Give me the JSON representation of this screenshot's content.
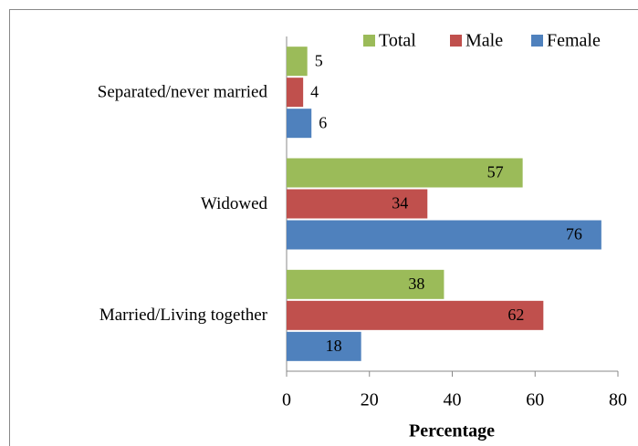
{
  "chart_data": {
    "type": "bar",
    "orientation": "horizontal",
    "x_label": "Percentage",
    "categories": [
      "Separated/never married",
      "Widowed",
      "Married/Living together"
    ],
    "series": [
      {
        "name": "Total",
        "color": "#9bbb59",
        "values": [
          5,
          57,
          38
        ]
      },
      {
        "name": "Male",
        "color": "#c0504d",
        "values": [
          4,
          34,
          62
        ]
      },
      {
        "name": "Female",
        "color": "#4f81bd",
        "values": [
          6,
          76,
          18
        ]
      }
    ],
    "xlim": [
      0,
      80
    ],
    "xticks": [
      0,
      20,
      40,
      60,
      80
    ],
    "legend": "top-right"
  }
}
